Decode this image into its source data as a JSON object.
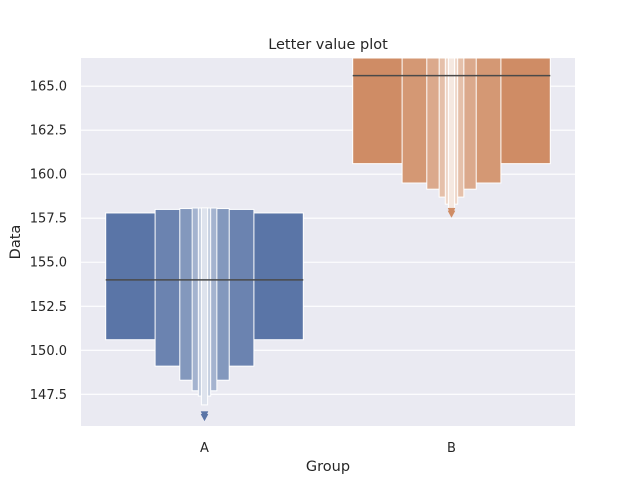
{
  "chart_data": {
    "type": "letter-value",
    "title": "Letter value plot",
    "xlabel": "Group",
    "ylabel": "Data",
    "ylim": [
      145.7,
      166.6
    ],
    "yticks": [
      147.5,
      150.0,
      152.5,
      155.0,
      157.5,
      160.0,
      162.5,
      165.0
    ],
    "ytick_labels": [
      "147.5",
      "150.0",
      "152.5",
      "155.0",
      "157.5",
      "160.0",
      "162.5",
      "165.0"
    ],
    "grid": true,
    "categories": [
      "A",
      "B"
    ],
    "series": [
      {
        "category": "A",
        "color": "#5a75a7",
        "median": 154.0,
        "boxes": [
          {
            "low": 150.6,
            "high": 157.8
          },
          {
            "low": 149.1,
            "high": 158.0
          },
          {
            "low": 148.3,
            "high": 158.05
          },
          {
            "low": 147.7,
            "high": 158.08
          },
          {
            "low": 147.4,
            "high": 158.08
          },
          {
            "low": 146.9,
            "high": 158.09
          }
        ],
        "outliers": [
          146.2,
          146.35
        ]
      },
      {
        "category": "B",
        "color": "#cf8c65",
        "median": 165.6,
        "boxes": [
          {
            "low": 160.6,
            "high": 166.6
          },
          {
            "low": 159.5,
            "high": 166.6
          },
          {
            "low": 159.15,
            "high": 166.6
          },
          {
            "low": 158.7,
            "high": 166.6
          },
          {
            "low": 158.3,
            "high": 166.6
          },
          {
            "low": 158.05,
            "high": 166.6
          }
        ],
        "outliers": [
          157.75,
          157.9
        ]
      }
    ]
  }
}
